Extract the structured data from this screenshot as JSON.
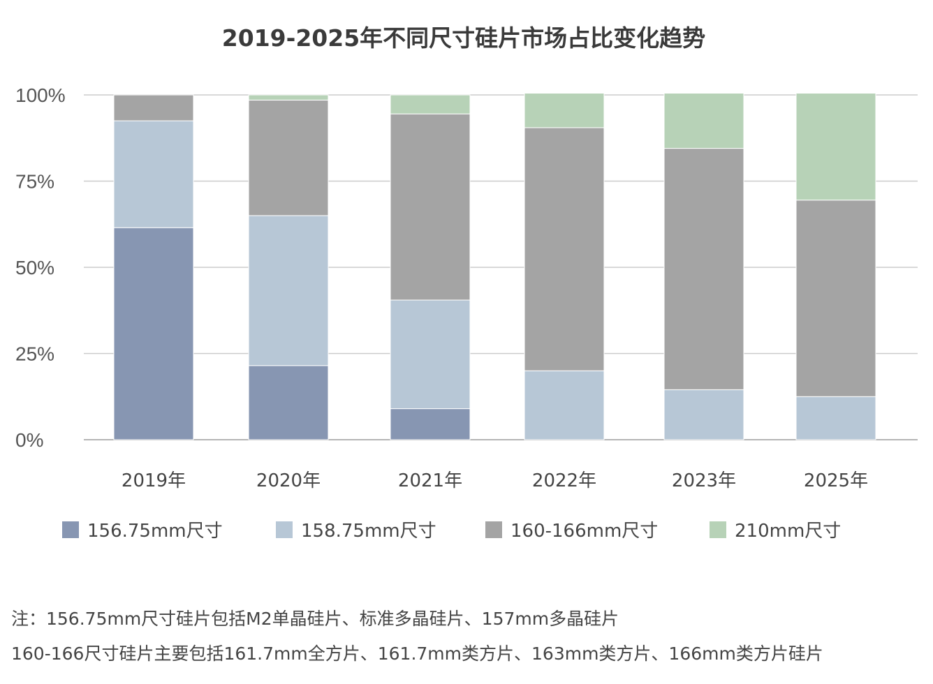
{
  "chart_data": {
    "type": "bar",
    "stacked": true,
    "title": "2019-2025年不同尺寸硅片市场占比变化趋势",
    "categories": [
      "2019年",
      "2020年",
      "2021年",
      "2022年",
      "2023年",
      "2025年"
    ],
    "series": [
      {
        "name": "156.75mm尺寸",
        "color": "#8796b2",
        "values": [
          61.5,
          21.5,
          9,
          0,
          0,
          0
        ]
      },
      {
        "name": "158.75mm尺寸",
        "color": "#b7c7d6",
        "values": [
          31,
          43.5,
          31.5,
          20,
          14.5,
          12.5
        ]
      },
      {
        "name": "160-166mm尺寸",
        "color": "#a4a4a4",
        "values": [
          7.5,
          33.5,
          54,
          70.5,
          70,
          57
        ]
      },
      {
        "name": "210mm尺寸",
        "color": "#b7d2b7",
        "values": [
          0,
          1.5,
          5.5,
          10,
          16,
          31
        ]
      }
    ],
    "yticks": [
      "0%",
      "25%",
      "50%",
      "75%",
      "100%"
    ],
    "ylim": [
      0,
      100
    ],
    "xlabel": "",
    "ylabel": "",
    "legend_position": "bottom",
    "grid": true
  },
  "notes": [
    "注：156.75mm尺寸硅片包括M2单晶硅片、标准多晶硅片、157mm多晶硅片",
    "160-166尺寸硅片主要包括161.7mm全方片、161.7mm类方片、163mm类方片、166mm类方片硅片"
  ]
}
